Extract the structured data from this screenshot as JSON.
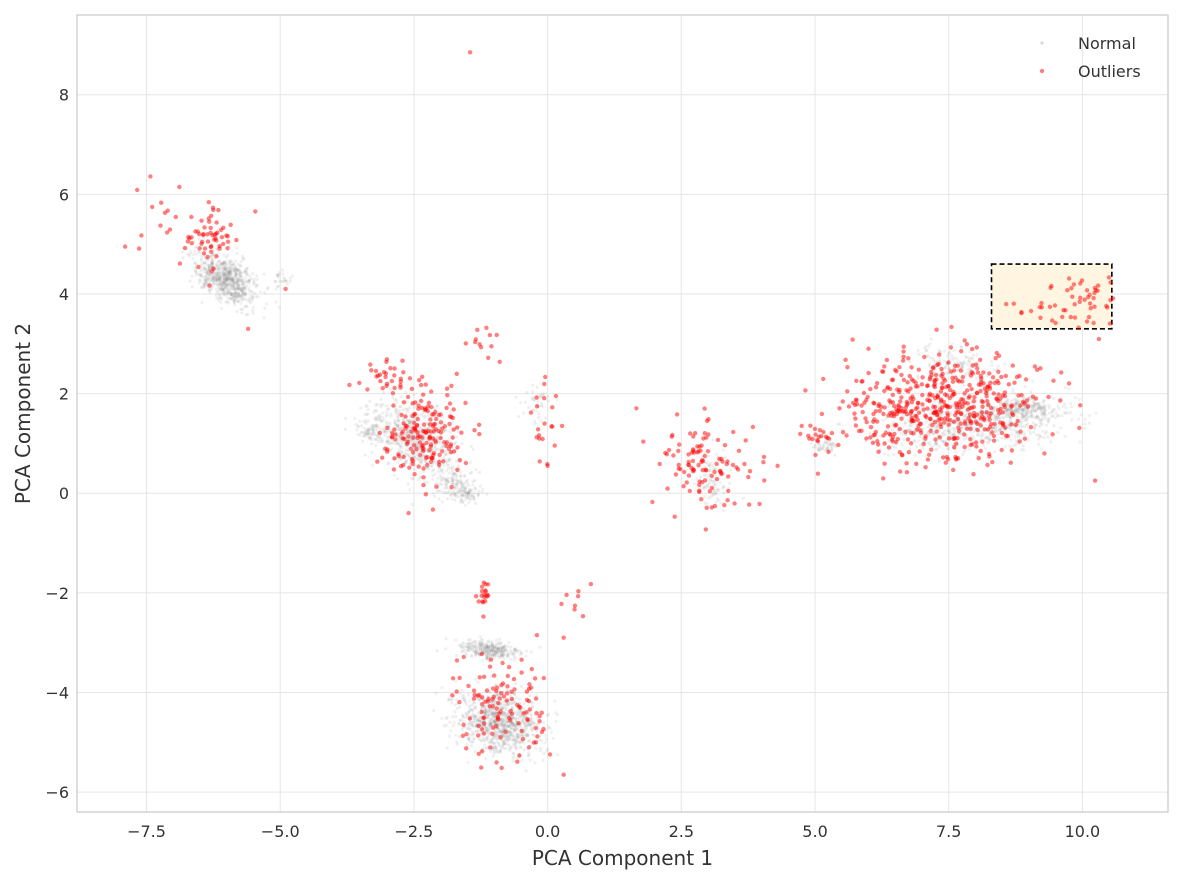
{
  "chart_data": {
    "type": "scatter",
    "title": "",
    "xlabel": "PCA Component 1",
    "ylabel": "PCA Component 2",
    "xlim": [
      -8.8,
      11.6
    ],
    "ylim": [
      -6.4,
      9.6
    ],
    "xticks": [
      -7.5,
      -5.0,
      -2.5,
      0.0,
      2.5,
      5.0,
      7.5,
      10.0
    ],
    "xtick_labels": [
      "−7.5",
      "−5.0",
      "−2.5",
      "0.0",
      "2.5",
      "5.0",
      "7.5",
      "10.0"
    ],
    "yticks": [
      -6,
      -4,
      -2,
      0,
      2,
      4,
      6,
      8
    ],
    "ytick_labels": [
      "−6",
      "−4",
      "−2",
      "0",
      "2",
      "4",
      "6",
      "8"
    ],
    "grid": true,
    "legend_position": "top-right",
    "series": [
      {
        "name": "Normal",
        "color": "#808080",
        "clusters": [
          {
            "cx": -6.0,
            "cy": 4.3,
            "sx": 0.35,
            "sy": 0.2,
            "rot": -38,
            "n": 700
          },
          {
            "cx": -4.95,
            "cy": 4.3,
            "sx": 0.08,
            "sy": 0.08,
            "rot": 0,
            "n": 25
          },
          {
            "cx": -2.5,
            "cy": 1.1,
            "sx": 0.5,
            "sy": 0.3,
            "rot": -40,
            "n": 600
          },
          {
            "cx": -3.3,
            "cy": 1.2,
            "sx": 0.15,
            "sy": 0.08,
            "rot": 0,
            "n": 60
          },
          {
            "cx": -1.75,
            "cy": 0.2,
            "sx": 0.2,
            "sy": 0.15,
            "rot": 0,
            "n": 120
          },
          {
            "cx": -1.5,
            "cy": -0.05,
            "sx": 0.12,
            "sy": 0.08,
            "rot": 0,
            "n": 60
          },
          {
            "cx": -0.2,
            "cy": 1.8,
            "sx": 0.15,
            "sy": 0.2,
            "rot": 0,
            "n": 40
          },
          {
            "cx": -1.1,
            "cy": -3.15,
            "sx": 0.3,
            "sy": 0.1,
            "rot": -5,
            "n": 300
          },
          {
            "cx": -0.9,
            "cy": -4.6,
            "sx": 0.4,
            "sy": 0.3,
            "rot": -25,
            "n": 900
          },
          {
            "cx": 3.1,
            "cy": 0.3,
            "sx": 0.15,
            "sy": 0.3,
            "rot": 0,
            "n": 90
          },
          {
            "cx": 5.2,
            "cy": 0.95,
            "sx": 0.12,
            "sy": 0.08,
            "rot": 0,
            "n": 50
          },
          {
            "cx": 8.0,
            "cy": 1.4,
            "sx": 0.9,
            "sy": 0.25,
            "rot": 5,
            "n": 700
          },
          {
            "cx": 8.9,
            "cy": 1.7,
            "sx": 0.3,
            "sy": 0.1,
            "rot": 0,
            "n": 200
          },
          {
            "cx": 7.6,
            "cy": 2.6,
            "sx": 0.4,
            "sy": 0.15,
            "rot": -10,
            "n": 140
          }
        ]
      },
      {
        "name": "Outliers",
        "color": "#ff0000",
        "clusters": [
          {
            "cx": -6.3,
            "cy": 5.1,
            "sx": 0.25,
            "sy": 0.35,
            "rot": -40,
            "n": 60
          },
          {
            "cx": -7.2,
            "cy": 5.6,
            "sx": 0.35,
            "sy": 0.35,
            "rot": 0,
            "n": 14
          },
          {
            "cx": -2.3,
            "cy": 1.2,
            "sx": 0.4,
            "sy": 0.45,
            "rot": 0,
            "n": 180
          },
          {
            "cx": -3.0,
            "cy": 2.3,
            "sx": 0.25,
            "sy": 0.15,
            "rot": 0,
            "n": 30
          },
          {
            "cx": -1.2,
            "cy": 2.9,
            "sx": 0.15,
            "sy": 0.25,
            "rot": 0,
            "n": 12
          },
          {
            "cx": -0.1,
            "cy": 1.3,
            "sx": 0.12,
            "sy": 0.5,
            "rot": 0,
            "n": 20
          },
          {
            "cx": -1.2,
            "cy": -2.0,
            "sx": 0.08,
            "sy": 0.12,
            "rot": 0,
            "n": 18
          },
          {
            "cx": 0.5,
            "cy": -2.1,
            "sx": 0.15,
            "sy": 0.2,
            "rot": 0,
            "n": 8
          },
          {
            "cx": -0.9,
            "cy": -4.2,
            "sx": 0.45,
            "sy": 0.55,
            "rot": 0,
            "n": 120
          },
          {
            "cx": 3.0,
            "cy": 0.6,
            "sx": 0.45,
            "sy": 0.45,
            "rot": 0,
            "n": 110
          },
          {
            "cx": 5.2,
            "cy": 1.15,
            "sx": 0.25,
            "sy": 0.12,
            "rot": 0,
            "n": 20
          },
          {
            "cx": 7.4,
            "cy": 1.7,
            "sx": 0.9,
            "sy": 0.55,
            "rot": 0,
            "n": 520
          },
          {
            "cx": 10.0,
            "cy": 3.8,
            "sx": 0.35,
            "sy": 0.3,
            "rot": 0,
            "n": 45
          },
          {
            "cx": 8.9,
            "cy": 3.7,
            "sx": 0.3,
            "sy": 0.1,
            "rot": 0,
            "n": 10
          }
        ],
        "extra_points": [
          [
            -1.45,
            8.85
          ],
          [
            0.3,
            -5.65
          ],
          [
            -7.9,
            4.95
          ],
          [
            -5.6,
            3.3
          ],
          [
            -2.6,
            -0.4
          ],
          [
            0.0,
            0.55
          ],
          [
            0.3,
            -2.9
          ],
          [
            -0.2,
            -2.85
          ],
          [
            4.3,
            0.55
          ],
          [
            6.0,
            2.9
          ],
          [
            -4.9,
            4.1
          ]
        ]
      }
    ],
    "annotations": [
      {
        "type": "highlight-rect",
        "x0": 8.3,
        "x1": 10.55,
        "y0": 3.3,
        "y1": 4.6,
        "fill": "#fff5e0",
        "stroke": "#000000",
        "style": "dashed"
      }
    ]
  }
}
